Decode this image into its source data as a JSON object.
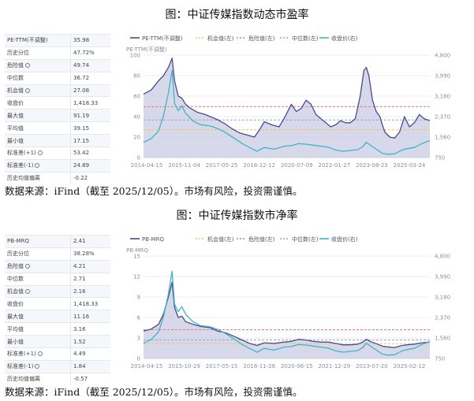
{
  "panels": [
    {
      "title": "图：中证传媒指数动态市盈率",
      "source": "数据来源：iFind（截至 2025/12/05）。市场有风险，投资需谨慎。",
      "stats": [
        {
          "label": "PE-TTM(不调整)",
          "value": "35.98",
          "icon": false
        },
        {
          "label": "历史分位",
          "value": "47.72%",
          "icon": false
        },
        {
          "label": "危险值",
          "value": "49.74",
          "icon": true
        },
        {
          "label": "中位数",
          "value": "36.72",
          "icon": false
        },
        {
          "label": "机会值",
          "value": "27.08",
          "icon": true
        },
        {
          "label": "收盘价",
          "value": "1,418.33",
          "icon": false
        },
        {
          "label": "最大值",
          "value": "91.19",
          "icon": false
        },
        {
          "label": "平均值",
          "value": "39.15",
          "icon": false
        },
        {
          "label": "最小值",
          "value": "17.15",
          "icon": false
        },
        {
          "label": "标准差(+1)",
          "value": "53.42",
          "icon": true
        },
        {
          "label": "标准差(-1)",
          "value": "24.89",
          "icon": true
        },
        {
          "label": "历史均值偏离",
          "value": "-0.22",
          "icon": false
        }
      ],
      "chart_data": {
        "type": "line",
        "legend": [
          "PE-TTM(不调整)",
          "机会值(左)",
          "危险值(左)",
          "中位数(左)",
          "收盘价(右)"
        ],
        "left_axis_label": "PE-TTM(不调整)",
        "left_ticks": [
          0,
          20,
          40,
          60,
          80,
          100
        ],
        "right_ticks": [
          "750",
          "1,560",
          "2,370",
          "3,180",
          "3,990",
          "4,800"
        ],
        "right_range": [
          750,
          4800
        ],
        "x_labels": [
          "2014-04-15",
          "2015-11-04",
          "2017-05-25",
          "2018-12-12",
          "2020-07-09",
          "2022-01-27",
          "2023-08-23",
          "2025-03-24"
        ],
        "x_range": [
          2014.29,
          2025.93
        ],
        "ylim": [
          0,
          100
        ],
        "reference_lines": {
          "danger": 49.74,
          "median": 36.72,
          "opportunity": 27.08
        },
        "series": [
          {
            "name": "PE-TTM(不调整)",
            "axis": "left",
            "x": [
              2014.29,
              2014.6,
              2014.9,
              2015.1,
              2015.3,
              2015.45,
              2015.55,
              2015.7,
              2015.85,
              2016.0,
              2016.2,
              2016.5,
              2016.8,
              2017.0,
              2017.3,
              2017.6,
              2017.9,
              2018.2,
              2018.5,
              2018.8,
              2019.0,
              2019.2,
              2019.5,
              2019.8,
              2020.0,
              2020.3,
              2020.5,
              2020.7,
              2020.9,
              2021.1,
              2021.3,
              2021.5,
              2021.7,
              2021.9,
              2022.1,
              2022.3,
              2022.5,
              2022.7,
              2022.9,
              2023.1,
              2023.25,
              2023.35,
              2023.45,
              2023.6,
              2023.75,
              2023.9,
              2024.0,
              2024.1,
              2024.3,
              2024.5,
              2024.7,
              2024.9,
              2025.1,
              2025.3,
              2025.5,
              2025.7,
              2025.93
            ],
            "y": [
              62,
              66,
              75,
              80,
              88,
              97,
              75,
              60,
              58,
              52,
              48,
              44,
              42,
              40,
              37,
              33,
              28,
              24,
              22,
              20,
              27,
              35,
              32,
              30,
              38,
              52,
              45,
              48,
              56,
              52,
              42,
              38,
              34,
              30,
              32,
              36,
              34,
              34,
              38,
              60,
              85,
              88,
              80,
              56,
              45,
              40,
              32,
              25,
              20,
              19,
              25,
              40,
              30,
              34,
              42,
              38,
              36
            ]
          },
          {
            "name": "收盘价(右)",
            "axis": "right",
            "x": [
              2014.29,
              2014.6,
              2014.9,
              2015.1,
              2015.3,
              2015.45,
              2015.55,
              2015.7,
              2015.85,
              2016.0,
              2016.3,
              2016.6,
              2017.0,
              2017.3,
              2017.6,
              2018.0,
              2018.3,
              2018.6,
              2018.9,
              2019.2,
              2019.6,
              2020.0,
              2020.3,
              2020.6,
              2020.9,
              2021.2,
              2021.5,
              2021.8,
              2022.1,
              2022.4,
              2022.7,
              2023.0,
              2023.2,
              2023.35,
              2023.5,
              2023.8,
              2024.0,
              2024.2,
              2024.5,
              2024.8,
              2025.0,
              2025.3,
              2025.6,
              2025.93
            ],
            "y": [
              1350,
              1500,
              1800,
              2400,
              3300,
              4200,
              2900,
              2600,
              2800,
              2500,
              2200,
              2050,
              2000,
              1900,
              1750,
              1500,
              1300,
              1150,
              1000,
              1150,
              1080,
              1200,
              1220,
              1300,
              1280,
              1240,
              1200,
              1160,
              1050,
              1000,
              1030,
              1060,
              1180,
              1350,
              1250,
              1050,
              920,
              880,
              900,
              1050,
              1100,
              1150,
              1300,
              1420
            ]
          }
        ]
      }
    },
    {
      "title": "图：中证传媒指数市净率",
      "source": "数据来源：iFind（截至 2025/12/05）。市场有风险，投资需谨慎。",
      "stats": [
        {
          "label": "PB-MRQ",
          "value": "2.41",
          "icon": false
        },
        {
          "label": "历史分位",
          "value": "38.28%",
          "icon": false
        },
        {
          "label": "危险值",
          "value": "4.21",
          "icon": true
        },
        {
          "label": "中位数",
          "value": "2.71",
          "icon": false
        },
        {
          "label": "机会值",
          "value": "2.16",
          "icon": true
        },
        {
          "label": "收盘价",
          "value": "1,418.33",
          "icon": false
        },
        {
          "label": "最大值",
          "value": "11.16",
          "icon": false
        },
        {
          "label": "平均值",
          "value": "3.16",
          "icon": false
        },
        {
          "label": "最小值",
          "value": "1.52",
          "icon": false
        },
        {
          "label": "标准差(+1)",
          "value": "4.49",
          "icon": true
        },
        {
          "label": "标准差(-1)",
          "value": "1.84",
          "icon": true
        },
        {
          "label": "历史均值偏离",
          "value": "-0.57",
          "icon": false
        }
      ],
      "chart_data": {
        "type": "line",
        "legend": [
          "PB-MRQ",
          "机会值(左)",
          "危险值(左)",
          "中位数(左)",
          "收盘价(右)"
        ],
        "left_axis_label": "PB-MRQ",
        "left_ticks": [
          0,
          3,
          6,
          9,
          12,
          15
        ],
        "right_ticks": [
          "750",
          "1,560",
          "2,370",
          "3,180",
          "3,990",
          "4,800"
        ],
        "right_range": [
          750,
          4800
        ],
        "x_labels": [
          "2014-04-15",
          "2015-10-29",
          "2017-05-15",
          "2018-11-26",
          "2020-06-15",
          "2021-12-29",
          "2023-07-20",
          "2025-02-12"
        ],
        "x_range": [
          2014.29,
          2025.93
        ],
        "ylim": [
          0,
          15
        ],
        "reference_lines": {
          "danger": 4.21,
          "median": 2.71,
          "opportunity": 2.16
        },
        "series": [
          {
            "name": "PB-MRQ",
            "axis": "left",
            "x": [
              2014.29,
              2014.6,
              2014.9,
              2015.1,
              2015.3,
              2015.45,
              2015.55,
              2015.7,
              2015.85,
              2016.0,
              2016.3,
              2016.6,
              2017.0,
              2017.3,
              2017.6,
              2018.0,
              2018.3,
              2018.6,
              2018.9,
              2019.2,
              2019.6,
              2020.0,
              2020.3,
              2020.6,
              2020.9,
              2021.2,
              2021.5,
              2021.8,
              2022.1,
              2022.4,
              2022.7,
              2023.0,
              2023.2,
              2023.35,
              2023.5,
              2023.8,
              2024.0,
              2024.2,
              2024.5,
              2024.8,
              2025.0,
              2025.3,
              2025.6,
              2025.93
            ],
            "y": [
              4.0,
              4.3,
              5.0,
              6.5,
              9.0,
              11.16,
              7.5,
              6.0,
              6.2,
              5.4,
              5.0,
              4.7,
              4.5,
              4.0,
              3.8,
              3.2,
              2.7,
              2.2,
              1.9,
              2.3,
              2.2,
              2.4,
              2.5,
              2.8,
              2.7,
              2.5,
              2.4,
              2.4,
              2.2,
              2.0,
              2.0,
              2.1,
              2.4,
              2.8,
              2.5,
              2.1,
              1.8,
              1.7,
              1.6,
              1.9,
              2.0,
              2.1,
              2.3,
              2.41
            ]
          },
          {
            "name": "收盘价(右)",
            "axis": "right",
            "x": [
              2014.29,
              2014.6,
              2014.9,
              2015.1,
              2015.3,
              2015.45,
              2015.55,
              2015.7,
              2015.85,
              2016.0,
              2016.3,
              2016.6,
              2017.0,
              2017.3,
              2017.6,
              2018.0,
              2018.3,
              2018.6,
              2018.9,
              2019.2,
              2019.6,
              2020.0,
              2020.3,
              2020.6,
              2020.9,
              2021.2,
              2021.5,
              2021.8,
              2022.1,
              2022.4,
              2022.7,
              2023.0,
              2023.2,
              2023.35,
              2023.5,
              2023.8,
              2024.0,
              2024.2,
              2024.5,
              2024.8,
              2025.0,
              2025.3,
              2025.6,
              2025.93
            ],
            "y": [
              1350,
              1500,
              1800,
              2400,
              3300,
              4200,
              2900,
              2600,
              2800,
              2500,
              2200,
              2050,
              2000,
              1900,
              1750,
              1500,
              1300,
              1150,
              1000,
              1150,
              1080,
              1200,
              1220,
              1300,
              1280,
              1240,
              1200,
              1160,
              1050,
              1000,
              1030,
              1060,
              1180,
              1350,
              1250,
              1050,
              920,
              880,
              900,
              1050,
              1100,
              1150,
              1300,
              1420
            ]
          }
        ]
      }
    }
  ],
  "colors": {
    "value_line": "#4a4a8c",
    "value_fill": "#c9cce3",
    "close_line": "#3cb5c8",
    "danger": "#e8787a",
    "median": "#9aa3c8",
    "opportunity": "#f0c060",
    "grid": "#eceef4",
    "axis_text": "#8a8f99"
  }
}
